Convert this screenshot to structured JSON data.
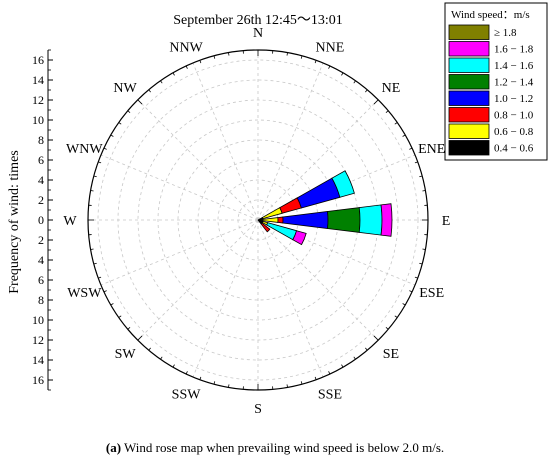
{
  "chart_data": {
    "type": "wind-rose",
    "title": "September 26th 12:45～13:01",
    "ylabel": "Frequency of wind: times",
    "r_ticks": [
      0,
      2,
      4,
      6,
      8,
      10,
      12,
      14,
      16
    ],
    "rlim": [
      0,
      17
    ],
    "directions": [
      "N",
      "NNE",
      "NE",
      "ENE",
      "E",
      "ESE",
      "SE",
      "SSE",
      "S",
      "SSW",
      "SW",
      "WSW",
      "W",
      "WNW",
      "NW",
      "NNW"
    ],
    "legend": {
      "title": "Wind speed：m/s",
      "placement": "top-right",
      "entries": [
        {
          "label": "≥ 1.8",
          "color": "#808000"
        },
        {
          "label": "1.6 − 1.8",
          "color": "#ff00ff"
        },
        {
          "label": "1.4 − 1.6",
          "color": "#00ffff"
        },
        {
          "label": "1.2 − 1.4",
          "color": "#008000"
        },
        {
          "label": "1.0 − 1.2",
          "color": "#0000ff"
        },
        {
          "label": "0.8 − 1.0",
          "color": "#ff0000"
        },
        {
          "label": "0.6 − 0.8",
          "color": "#ffff00"
        },
        {
          "label": "0.4 − 0.6",
          "color": "#000000"
        }
      ]
    },
    "series": [
      {
        "direction": "E",
        "segments": [
          {
            "bin": "0.4 − 0.6",
            "value": 0.5
          },
          {
            "bin": "0.6 − 0.8",
            "value": 1.5
          },
          {
            "bin": "0.8 − 1.0",
            "value": 0.5
          },
          {
            "bin": "1.0 − 1.2",
            "value": 4.5
          },
          {
            "bin": "1.2 − 1.4",
            "value": 3.2
          },
          {
            "bin": "1.4 − 1.6",
            "value": 2.2
          },
          {
            "bin": "1.6 − 1.8",
            "value": 1.0
          }
        ]
      },
      {
        "direction": "ENE",
        "segments": [
          {
            "bin": "0.4 − 0.6",
            "value": 0.5
          },
          {
            "bin": "0.6 − 0.8",
            "value": 2.0
          },
          {
            "bin": "0.8 − 1.0",
            "value": 2.0
          },
          {
            "bin": "1.0 − 1.2",
            "value": 4.0
          },
          {
            "bin": "1.4 − 1.6",
            "value": 1.5
          }
        ]
      },
      {
        "direction": "ESE",
        "segments": [
          {
            "bin": "0.4 − 0.6",
            "value": 0.5
          },
          {
            "bin": "0.6 − 0.8",
            "value": 0.5
          },
          {
            "bin": "1.4 − 1.6",
            "value": 3.0
          },
          {
            "bin": "1.6 − 1.8",
            "value": 1.0
          }
        ]
      },
      {
        "direction": "SE",
        "segments": [
          {
            "bin": "0.4 − 0.6",
            "value": 0.5
          },
          {
            "bin": "0.8 − 1.0",
            "value": 1.0
          }
        ]
      }
    ]
  },
  "caption": {
    "label": "(a)",
    "text": " Wind rose map when prevailing wind speed is below 2.0 m/s."
  }
}
